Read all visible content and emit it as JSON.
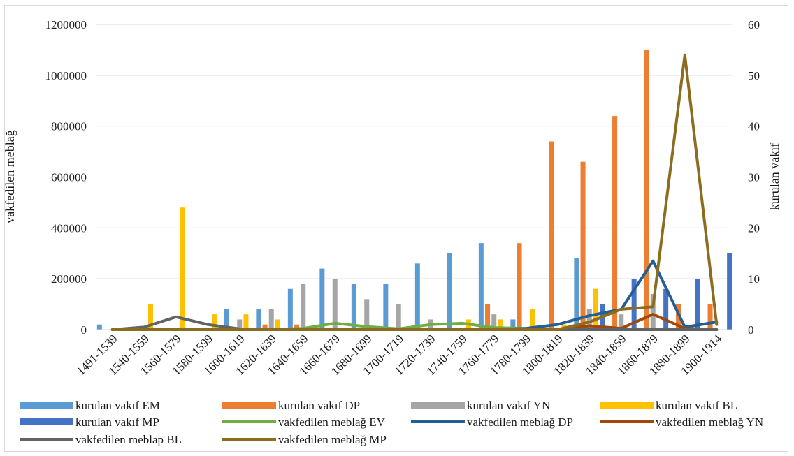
{
  "chart_data": {
    "type": "bar",
    "categories": [
      "1491-1539",
      "1540-1559",
      "1560-1579",
      "1580-1599",
      "1600-1619",
      "1620-1639",
      "1640-1659",
      "1660-1679",
      "1680-1699",
      "1700-1719",
      "1720-1739",
      "1740-1759",
      "1760-1779",
      "1780-1799",
      "1800-1819",
      "1820-1839",
      "1840-1859",
      "1860-1879",
      "1880-1899",
      "1900-1914"
    ],
    "ylabel": "vakfedilen meblağ",
    "y2label": "kurulan vakıf",
    "ylim": [
      0,
      1200000
    ],
    "y2lim": [
      0,
      60
    ],
    "yticks": [
      "0",
      "200000",
      "400000",
      "600000",
      "800000",
      "1000000",
      "1200000"
    ],
    "y2ticks": [
      "0",
      "10",
      "20",
      "30",
      "40",
      "50",
      "60"
    ],
    "grid": true,
    "legend_position": "bottom",
    "bar_series": [
      {
        "name": "kurulan vakıf EM",
        "color": "#5b9bd5",
        "values": [
          1,
          0,
          0,
          0,
          4,
          4,
          8,
          12,
          9,
          9,
          13,
          15,
          17,
          2,
          0,
          14,
          0,
          0,
          0,
          0
        ]
      },
      {
        "name": "kurulan vakıf DP",
        "color": "#ed7d31",
        "values": [
          0,
          0,
          0,
          0,
          0,
          1,
          1,
          0,
          0,
          0,
          0,
          0,
          5,
          17,
          37,
          33,
          42,
          55,
          5,
          5
        ]
      },
      {
        "name": "kurulan vakıf YN",
        "color": "#a5a5a5",
        "values": [
          0,
          0,
          0,
          0,
          2,
          4,
          9,
          10,
          6,
          5,
          2,
          0,
          3,
          0,
          0,
          4,
          3,
          7,
          0,
          0
        ]
      },
      {
        "name": "kurulan vakıf BL",
        "color": "#ffc000",
        "values": [
          0,
          5,
          24,
          3,
          3,
          2,
          0,
          0,
          0,
          0,
          0,
          2,
          2,
          4,
          1,
          8,
          0,
          0,
          0,
          0
        ]
      },
      {
        "name": "kurulan vakıf MP",
        "color": "#4472c4",
        "values": [
          0,
          0,
          0,
          0,
          0,
          0,
          0,
          0,
          0,
          0,
          0,
          0,
          0,
          0,
          0,
          5,
          10,
          8,
          10,
          15
        ]
      }
    ],
    "line_series": [
      {
        "name": "vakfedilen meblağ EV",
        "color": "#70ad47",
        "values": [
          0,
          0,
          0,
          0,
          0,
          0,
          5000,
          25000,
          12000,
          3000,
          20000,
          25000,
          8000,
          5000,
          0,
          0,
          0,
          0,
          0,
          0
        ]
      },
      {
        "name": "vakfedilen meblağ DP",
        "color": "#255e91",
        "values": [
          0,
          0,
          0,
          0,
          0,
          0,
          0,
          0,
          0,
          0,
          0,
          0,
          0,
          5000,
          20000,
          55000,
          80000,
          270000,
          10000,
          30000
        ]
      },
      {
        "name": "vakfedilen meblağ YN",
        "color": "#9e480e",
        "values": [
          0,
          0,
          0,
          0,
          0,
          0,
          0,
          0,
          0,
          0,
          0,
          0,
          0,
          0,
          0,
          15000,
          5000,
          60000,
          5000,
          0
        ]
      },
      {
        "name": "vakfedilen meblap BL",
        "color": "#636363",
        "values": [
          0,
          10000,
          50000,
          20000,
          3000,
          2000,
          0,
          0,
          0,
          0,
          0,
          0,
          0,
          0,
          0,
          0,
          0,
          0,
          0,
          0
        ]
      },
      {
        "name": "vakfedilen meblağ MP",
        "color": "#8c6d1f",
        "values": [
          0,
          0,
          0,
          0,
          0,
          0,
          0,
          0,
          0,
          0,
          0,
          0,
          0,
          0,
          0,
          30000,
          80000,
          90000,
          1080000,
          20000
        ]
      }
    ]
  }
}
